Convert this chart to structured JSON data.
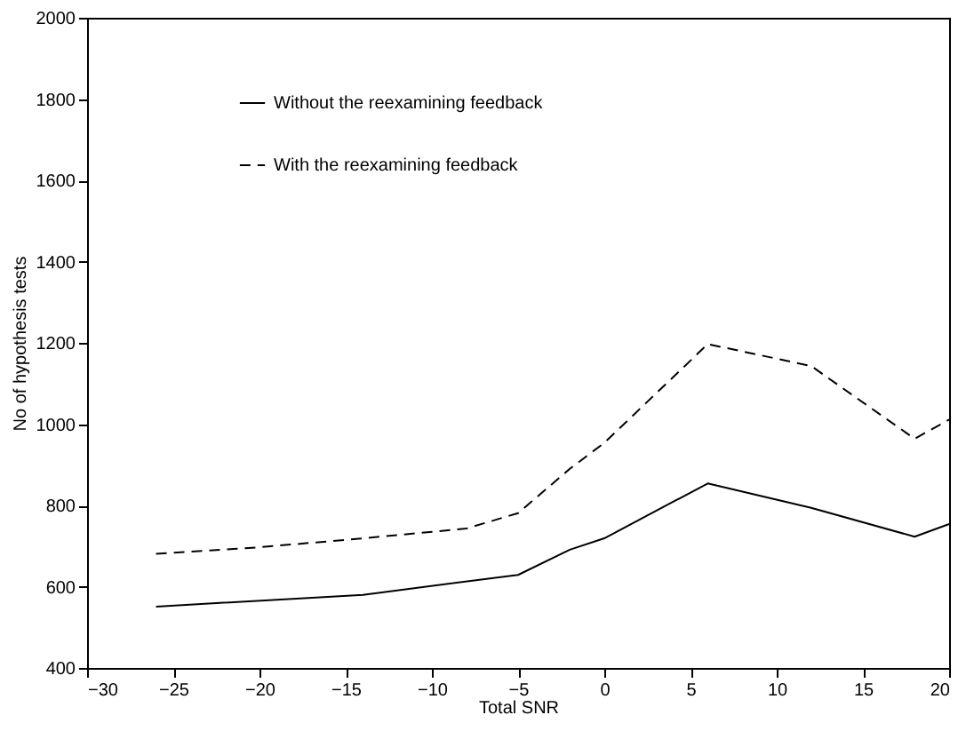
{
  "chart_data": {
    "type": "line",
    "xlabel": "Total SNR",
    "ylabel": "No of hypothesis tests",
    "xlim": [
      -30,
      20
    ],
    "xticks": [
      -30,
      -25,
      -20,
      -15,
      -10,
      -5,
      0,
      5,
      10,
      15,
      20
    ],
    "ylim": [
      400,
      2000
    ],
    "yticks": [
      400,
      600,
      800,
      1000,
      1200,
      1400,
      1600,
      1800,
      2000
    ],
    "grid": false,
    "legend": "top left",
    "marker": "none",
    "series": [
      {
        "name": "Without the reexamining feedback",
        "color": "#000000",
        "line_style": "solid",
        "x": [
          -26,
          -14,
          -5,
          -2,
          0,
          6,
          12,
          18,
          20
        ],
        "values": [
          551,
          580,
          629,
          691,
          719,
          854,
          794,
          723,
          754
        ]
      },
      {
        "name": "With the reexamining feedback",
        "color": "#000000",
        "line_style": "dashed",
        "x": [
          -26,
          -20,
          -14,
          -8,
          -5,
          -2,
          0,
          6,
          12,
          18,
          20
        ],
        "values": [
          681,
          697,
          719,
          743,
          781,
          890,
          954,
          1197,
          1143,
          964,
          1011
        ]
      }
    ]
  }
}
